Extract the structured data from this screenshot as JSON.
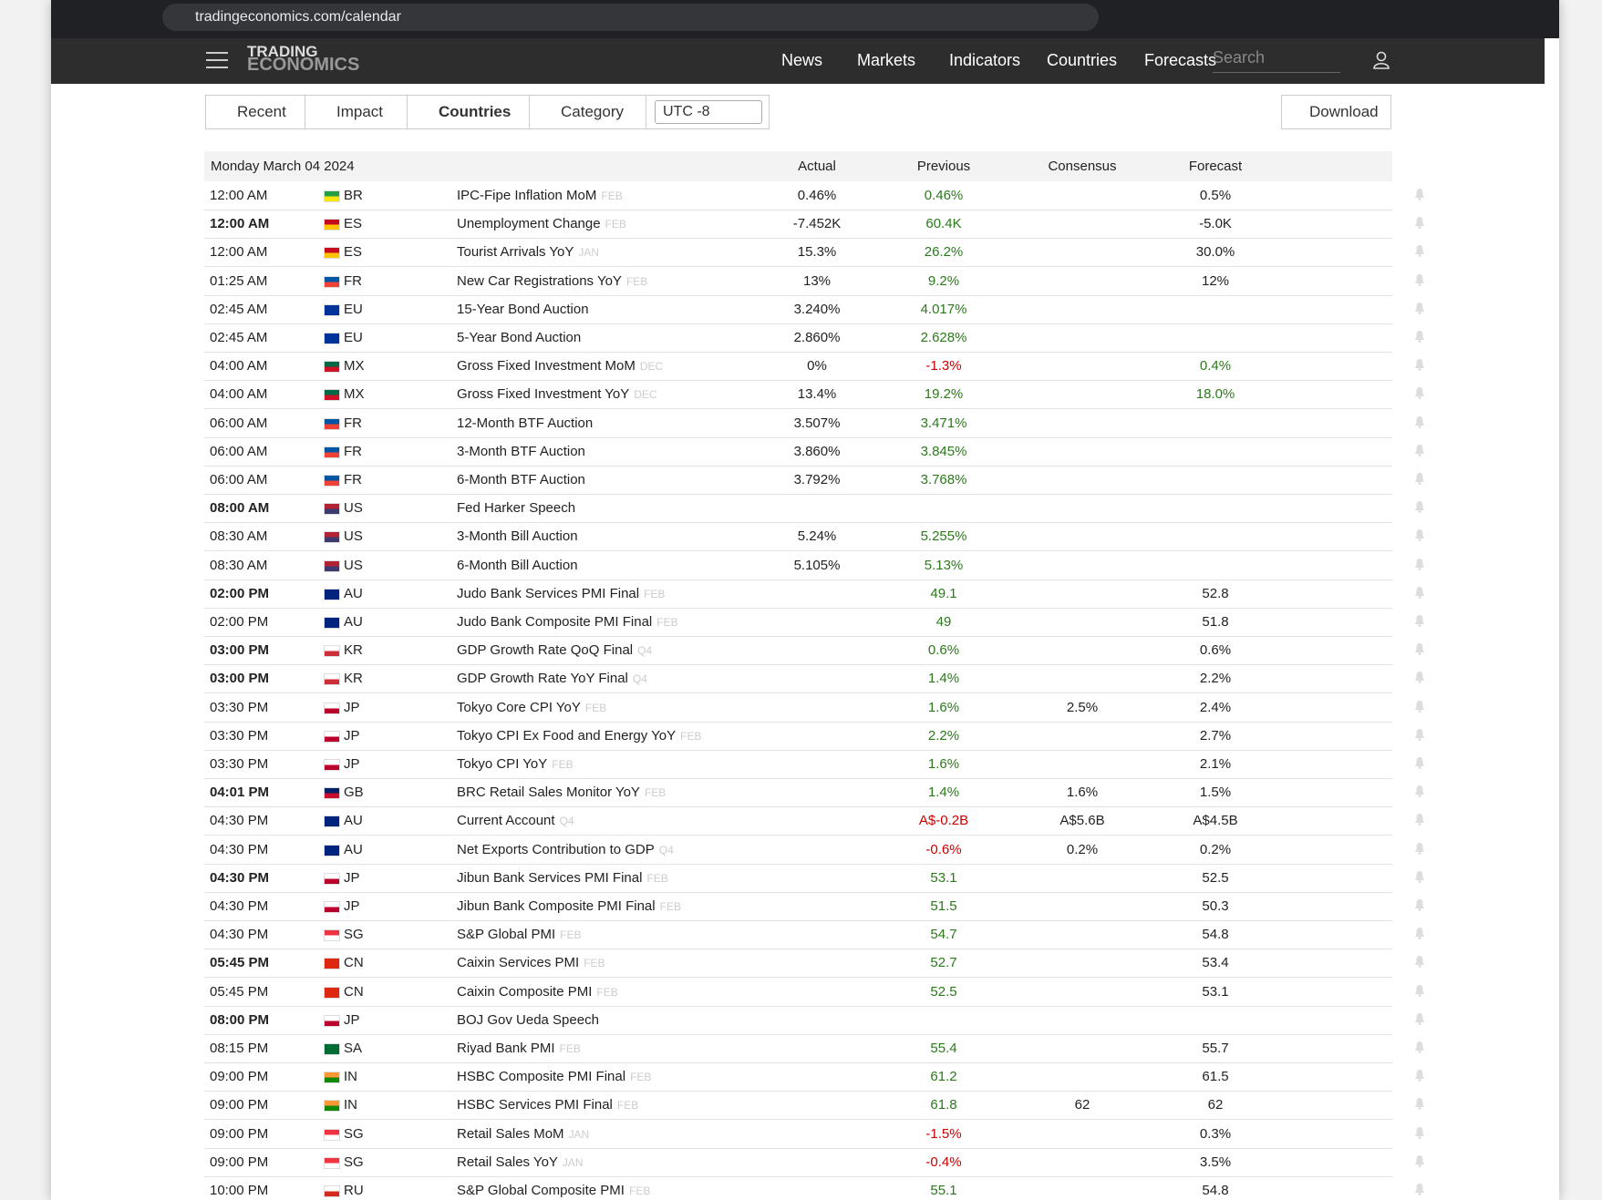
{
  "browser": {
    "url": "tradingeconomics.com/calendar"
  },
  "nav": {
    "logo_top": "TRADING",
    "logo_bottom": "ECONOMICS",
    "items": [
      "News",
      "Markets",
      "Indicators",
      "Countries",
      "Forecasts"
    ],
    "search": "Search"
  },
  "toolbar": {
    "buttons": [
      "Recent",
      "Impact",
      "Countries",
      "Category"
    ],
    "timezone": "UTC -8",
    "download": "Download"
  },
  "table": {
    "date": "Monday March 04 2024",
    "columns": [
      "Actual",
      "Previous",
      "Consensus",
      "Forecast"
    ],
    "rows": [
      {
        "time": "12:00 AM",
        "country": "BR",
        "event": "IPC-Fipe Inflation MoM",
        "ref": "FEB",
        "actual": "0.46%",
        "previous": "0.46%",
        "forecast": "0.5%"
      },
      {
        "time": "12:00 AM",
        "bold": true,
        "country": "ES",
        "event": "Unemployment Change",
        "ref": "FEB",
        "actual": "-7.452K",
        "previous": "60.4K",
        "forecast": "-5.0K"
      },
      {
        "time": "12:00 AM",
        "country": "ES",
        "event": "Tourist Arrivals YoY",
        "ref": "JAN",
        "actual": "15.3%",
        "previous": "26.2%",
        "forecast": "30.0%"
      },
      {
        "time": "01:25 AM",
        "country": "FR",
        "event": "New Car Registrations YoY",
        "ref": "FEB",
        "actual": "13%",
        "previous": "9.2%",
        "forecast": "12%"
      },
      {
        "time": "02:45 AM",
        "country": "EU",
        "event": "15-Year Bond Auction",
        "actual": "3.240%",
        "previous": "4.017%"
      },
      {
        "time": "02:45 AM",
        "country": "EU",
        "event": "5-Year Bond Auction",
        "actual": "2.860%",
        "previous": "2.628%"
      },
      {
        "time": "04:00 AM",
        "country": "MX",
        "event": "Gross Fixed Investment MoM",
        "ref": "DEC",
        "actual": "0%",
        "previous": "-1.3%",
        "previous_color": "#cc0000",
        "forecast": "0.4%",
        "forecast_color": "#2a7a1a"
      },
      {
        "time": "04:00 AM",
        "country": "MX",
        "event": "Gross Fixed Investment YoY",
        "ref": "DEC",
        "actual": "13.4%",
        "previous": "19.2%",
        "forecast": "18.0%",
        "forecast_color": "#2a7a1a"
      },
      {
        "time": "06:00 AM",
        "country": "FR",
        "event": "12-Month BTF Auction",
        "actual": "3.507%",
        "previous": "3.471%"
      },
      {
        "time": "06:00 AM",
        "country": "FR",
        "event": "3-Month BTF Auction",
        "actual": "3.860%",
        "previous": "3.845%"
      },
      {
        "time": "06:00 AM",
        "country": "FR",
        "event": "6-Month BTF Auction",
        "actual": "3.792%",
        "previous": "3.768%"
      },
      {
        "time": "08:00 AM",
        "bold": true,
        "country": "US",
        "event": "Fed Harker Speech"
      },
      {
        "time": "08:30 AM",
        "country": "US",
        "event": "3-Month Bill Auction",
        "actual": "5.24%",
        "previous": "5.255%"
      },
      {
        "time": "08:30 AM",
        "country": "US",
        "event": "6-Month Bill Auction",
        "actual": "5.105%",
        "previous": "5.13%"
      },
      {
        "time": "02:00 PM",
        "bold": true,
        "country": "AU",
        "event": "Judo Bank Services PMI Final",
        "ref": "FEB",
        "previous": "49.1",
        "forecast": "52.8"
      },
      {
        "time": "02:00 PM",
        "country": "AU",
        "event": "Judo Bank Composite PMI Final",
        "ref": "FEB",
        "previous": "49",
        "forecast": "51.8"
      },
      {
        "time": "03:00 PM",
        "bold": true,
        "country": "KR",
        "event": "GDP Growth Rate QoQ Final",
        "ref": "Q4",
        "previous": "0.6%",
        "forecast": "0.6%"
      },
      {
        "time": "03:00 PM",
        "bold": true,
        "country": "KR",
        "event": "GDP Growth Rate YoY Final",
        "ref": "Q4",
        "previous": "1.4%",
        "forecast": "2.2%"
      },
      {
        "time": "03:30 PM",
        "country": "JP",
        "event": "Tokyo Core CPI YoY",
        "ref": "FEB",
        "previous": "1.6%",
        "consensus": "2.5%",
        "forecast": "2.4%"
      },
      {
        "time": "03:30 PM",
        "country": "JP",
        "event": "Tokyo CPI Ex Food and Energy YoY",
        "ref": "FEB",
        "previous": "2.2%",
        "forecast": "2.7%"
      },
      {
        "time": "03:30 PM",
        "country": "JP",
        "event": "Tokyo CPI YoY",
        "ref": "FEB",
        "previous": "1.6%",
        "forecast": "2.1%"
      },
      {
        "time": "04:01 PM",
        "bold": true,
        "country": "GB",
        "event": "BRC Retail Sales Monitor YoY",
        "ref": "FEB",
        "previous": "1.4%",
        "consensus": "1.6%",
        "forecast": "1.5%"
      },
      {
        "time": "04:30 PM",
        "country": "AU",
        "event": "Current Account",
        "ref": "Q4",
        "previous": "A$-0.2B",
        "previous_color": "#cc0000",
        "consensus": "A$5.6B",
        "forecast": "A$4.5B"
      },
      {
        "time": "04:30 PM",
        "country": "AU",
        "event": "Net Exports Contribution to GDP",
        "ref": "Q4",
        "previous": "-0.6%",
        "previous_color": "#cc0000",
        "consensus": "0.2%",
        "forecast": "0.2%"
      },
      {
        "time": "04:30 PM",
        "bold": true,
        "country": "JP",
        "event": "Jibun Bank Services PMI Final",
        "ref": "FEB",
        "previous": "53.1",
        "forecast": "52.5"
      },
      {
        "time": "04:30 PM",
        "country": "JP",
        "event": "Jibun Bank Composite PMI Final",
        "ref": "FEB",
        "previous": "51.5",
        "forecast": "50.3"
      },
      {
        "time": "04:30 PM",
        "country": "SG",
        "event": "S&P Global PMI",
        "ref": "FEB",
        "previous": "54.7",
        "forecast": "54.8"
      },
      {
        "time": "05:45 PM",
        "bold": true,
        "country": "CN",
        "event": "Caixin Services PMI",
        "ref": "FEB",
        "previous": "52.7",
        "forecast": "53.4"
      },
      {
        "time": "05:45 PM",
        "country": "CN",
        "event": "Caixin Composite PMI",
        "ref": "FEB",
        "previous": "52.5",
        "forecast": "53.1"
      },
      {
        "time": "08:00 PM",
        "bold": true,
        "country": "JP",
        "event": "BOJ Gov Ueda Speech"
      },
      {
        "time": "08:15 PM",
        "country": "SA",
        "event": "Riyad Bank PMI",
        "ref": "FEB",
        "previous": "55.4",
        "forecast": "55.7"
      },
      {
        "time": "09:00 PM",
        "country": "IN",
        "event": "HSBC Composite PMI Final",
        "ref": "FEB",
        "previous": "61.2",
        "forecast": "61.5"
      },
      {
        "time": "09:00 PM",
        "country": "IN",
        "event": "HSBC Services PMI Final",
        "ref": "FEB",
        "previous": "61.8",
        "consensus": "62",
        "forecast": "62"
      },
      {
        "time": "09:00 PM",
        "country": "SG",
        "event": "Retail Sales MoM",
        "ref": "JAN",
        "previous": "-1.5%",
        "previous_color": "#cc0000",
        "forecast": "0.3%"
      },
      {
        "time": "09:00 PM",
        "country": "SG",
        "event": "Retail Sales YoY",
        "ref": "JAN",
        "previous": "-0.4%",
        "previous_color": "#cc0000",
        "forecast": "3.5%"
      },
      {
        "time": "10:00 PM",
        "country": "RU",
        "event": "S&P Global Composite PMI",
        "ref": "FEB",
        "previous": "55.1",
        "forecast": "54.8"
      }
    ]
  }
}
